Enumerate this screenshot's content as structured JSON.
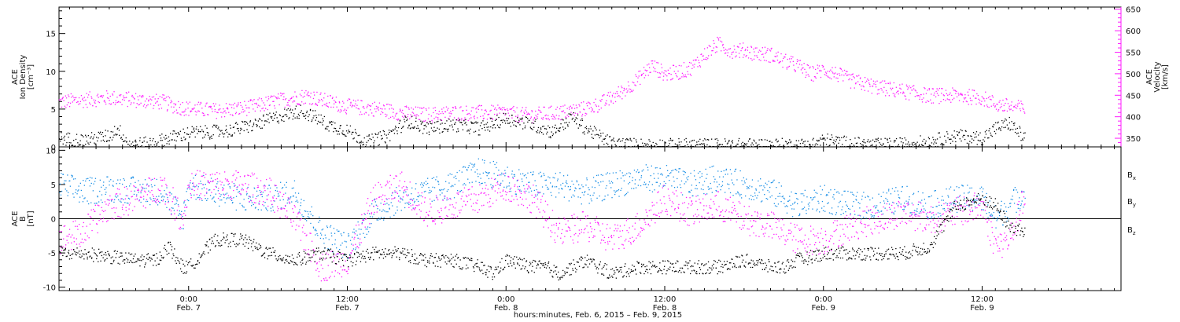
{
  "colors": {
    "axis": "#000000",
    "density": "#000000",
    "velocity": "#ff1aff",
    "bx": "#000000",
    "by": "#1a8fe6",
    "bz": "#ff1aff"
  },
  "x_axis": {
    "title": "hours:minutes, Feb. 6, 2015 – Feb. 9, 2015",
    "ticks": [
      {
        "time": "0:00",
        "date": "Feb. 7",
        "hour": 24
      },
      {
        "time": "12:00",
        "date": "Feb. 7",
        "hour": 36
      },
      {
        "time": "0:00",
        "date": "Feb. 8",
        "hour": 48
      },
      {
        "time": "12:00",
        "date": "Feb. 8",
        "hour": 60
      },
      {
        "time": "0:00",
        "date": "Feb. 9",
        "hour": 72
      },
      {
        "time": "12:00",
        "date": "Feb. 9",
        "hour": 84
      }
    ]
  },
  "chart_data": [
    {
      "type": "scatter",
      "name": "top-panel",
      "xlim": [
        14.2,
        94.5
      ],
      "data_end_hour": 87.2,
      "left_axis": {
        "label_lines": [
          "ACE",
          "Ion Density"
        ],
        "unit": "[cm⁻³]",
        "ylim": [
          0,
          18.5
        ],
        "tick_values": [
          0,
          5,
          10,
          15
        ],
        "tick_labels": [
          "0",
          "5",
          "10",
          "15"
        ]
      },
      "right_axis": {
        "label_lines": [
          "ACE",
          "Velocity"
        ],
        "unit": "[km/s]",
        "ylim": [
          330,
          655
        ],
        "tick_values": [
          350,
          400,
          450,
          500,
          550,
          600,
          650
        ],
        "tick_labels": [
          "350",
          "400",
          "450",
          "500",
          "550",
          "600",
          "650"
        ]
      },
      "series": [
        {
          "color_key": "density",
          "axis": "left",
          "hours": [
            14.2,
            16,
            18,
            18.6,
            19.5,
            21,
            22.5,
            24,
            25.5,
            27,
            29,
            31,
            32.5,
            33.5,
            34.5,
            36,
            37.5,
            39,
            40.5,
            42,
            44,
            46,
            48,
            50,
            51.5,
            53,
            54,
            55,
            56,
            58,
            60,
            62,
            64,
            66,
            68,
            70,
            71,
            72,
            74,
            76,
            78,
            80,
            82,
            84,
            85,
            86,
            87.2
          ],
          "values": [
            1.2,
            0.9,
            1.5,
            2.5,
            0.4,
            0.5,
            1.2,
            1.9,
            2.0,
            2.2,
            3.0,
            4.2,
            4.8,
            4.0,
            3.0,
            2.2,
            0.7,
            1.5,
            3.5,
            2.5,
            3.0,
            2.5,
            3.8,
            3.0,
            2.0,
            4.0,
            2.5,
            1.5,
            0.5,
            0.3,
            0.3,
            0.3,
            0.3,
            0.3,
            0.3,
            0.3,
            0.3,
            1.0,
            0.5,
            0.3,
            0.4,
            0.8,
            1.5,
            1.2,
            2.5,
            3.2,
            1.2
          ]
        },
        {
          "color_key": "velocity",
          "axis": "right",
          "hours": [
            14.2,
            16,
            18,
            20,
            22,
            23,
            24,
            26,
            28,
            29,
            31,
            32,
            33,
            34,
            36,
            38,
            40,
            42,
            44,
            46,
            48,
            49,
            50,
            52,
            54,
            55,
            56,
            57,
            58,
            59,
            60,
            61,
            62,
            63,
            64,
            65,
            66,
            67,
            68,
            69,
            70,
            71,
            72,
            73,
            74,
            76,
            78,
            80,
            82,
            84,
            85,
            86,
            87.2
          ],
          "values": [
            435,
            440,
            445,
            440,
            435,
            425,
            420,
            415,
            420,
            425,
            440,
            445,
            450,
            440,
            425,
            420,
            410,
            405,
            410,
            410,
            410,
            405,
            405,
            410,
            420,
            430,
            445,
            465,
            490,
            520,
            500,
            505,
            515,
            545,
            570,
            555,
            555,
            548,
            545,
            530,
            520,
            500,
            510,
            500,
            485,
            470,
            460,
            450,
            450,
            445,
            430,
            425,
            420
          ]
        }
      ]
    },
    {
      "type": "scatter",
      "name": "bottom-panel",
      "xlim": [
        14.2,
        94.5
      ],
      "data_end_hour": 87.2,
      "left_axis": {
        "label_lines": [
          "ACE",
          "B"
        ],
        "unit": "[nT]",
        "ylim": [
          -10.5,
          10.5
        ],
        "tick_values": [
          -10,
          -5,
          0,
          5,
          10
        ],
        "tick_labels": [
          "-10",
          "-5",
          "0",
          "5",
          "10"
        ]
      },
      "legend": {
        "placement": "right",
        "entries": [
          {
            "label": "B",
            "sub": "x",
            "color_key": "bx"
          },
          {
            "label": "B",
            "sub": "y",
            "color_key": "by"
          },
          {
            "label": "B",
            "sub": "z",
            "color_key": "bz"
          }
        ]
      },
      "series": [
        {
          "color_key": "bx",
          "hours": [
            14.2,
            16,
            18,
            20,
            21.5,
            22.5,
            23.5,
            24,
            26,
            28,
            30,
            32,
            34,
            36,
            38,
            40,
            42,
            44,
            46,
            47,
            48,
            50,
            51,
            52,
            54,
            56,
            58,
            60,
            62,
            64,
            66,
            68,
            69,
            70,
            72,
            74,
            76,
            78,
            80,
            82,
            84,
            85,
            86,
            87.2
          ],
          "values": [
            -5,
            -5,
            -5.5,
            -6,
            -6,
            -4,
            -7,
            -7,
            -3,
            -3,
            -5,
            -6,
            -5,
            -6,
            -5,
            -5,
            -6,
            -6,
            -7,
            -8,
            -6,
            -7,
            -7,
            -8,
            -6,
            -8,
            -7,
            -7,
            -7,
            -7,
            -6,
            -7,
            -7,
            -6,
            -5,
            -5,
            -5,
            -5,
            -4,
            2,
            3,
            2,
            -1,
            -2
          ]
        },
        {
          "color_key": "by",
          "hours": [
            14.2,
            16,
            18,
            20,
            22,
            23.5,
            24,
            26,
            28,
            30,
            32,
            34,
            36,
            38,
            40,
            42,
            44,
            46,
            48,
            50,
            52,
            54,
            56,
            58,
            60,
            62,
            64,
            66,
            68,
            69,
            70,
            72,
            74,
            76,
            78,
            80,
            82,
            84,
            85,
            86,
            87.2
          ],
          "values": [
            5,
            4,
            4.5,
            4.2,
            4,
            0,
            5,
            4,
            3,
            3,
            4,
            -2,
            -4,
            1,
            3,
            4,
            5,
            7,
            6,
            5,
            5,
            4,
            5,
            6,
            6,
            5,
            6,
            5,
            4,
            3,
            2,
            3,
            2,
            2,
            3,
            2,
            3,
            3,
            0,
            2,
            4
          ]
        },
        {
          "color_key": "bz",
          "hours": [
            14.2,
            16,
            18,
            20,
            22,
            23.5,
            24,
            26,
            28,
            30,
            32,
            34,
            36,
            38,
            40,
            42,
            44,
            46,
            48,
            50,
            52,
            54,
            56,
            58,
            60,
            62,
            64,
            66,
            68,
            70,
            72,
            74,
            76,
            78,
            80,
            82,
            84,
            85,
            86,
            87.2
          ],
          "values": [
            -3,
            -2,
            2,
            3,
            5,
            0,
            5,
            5,
            5,
            4,
            0,
            -7,
            -6,
            3,
            5,
            1,
            2,
            3,
            5,
            3,
            -2,
            -1,
            -3,
            -1,
            3,
            1,
            2,
            0,
            -1,
            -3,
            -3,
            -1,
            0,
            1,
            0,
            1,
            2,
            -4,
            -3,
            3
          ]
        }
      ]
    }
  ]
}
